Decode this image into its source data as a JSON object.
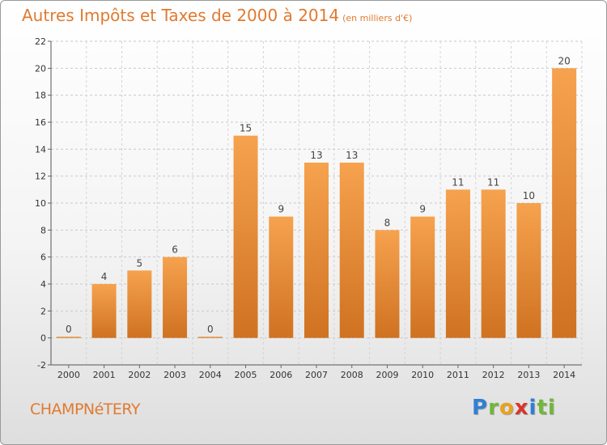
{
  "header": {
    "title": "Autres Impôts et Taxes de 2000 à 2014",
    "subtitle": "(en milliers d'€)"
  },
  "footer": {
    "town": "CHAMPNéTERY",
    "logo_letters": [
      "P",
      "r",
      "o",
      "x",
      "i",
      "ti"
    ]
  },
  "colors": {
    "bar_light": "#f6a24e",
    "bar_dark": "#cf7221",
    "text_accent": "#e07a30"
  },
  "chart_data": {
    "type": "bar",
    "title": "Autres Impôts et Taxes de 2000 à 2014",
    "subtitle": "(en milliers d'€)",
    "categories": [
      "2000",
      "2001",
      "2002",
      "2003",
      "2004",
      "2005",
      "2006",
      "2007",
      "2008",
      "2009",
      "2010",
      "2011",
      "2012",
      "2013",
      "2014"
    ],
    "values": [
      0,
      4,
      5,
      6,
      0,
      15,
      9,
      13,
      13,
      8,
      9,
      11,
      11,
      10,
      20
    ],
    "ylim": [
      -2,
      22
    ],
    "yticks": [
      -2,
      0,
      2,
      4,
      6,
      8,
      10,
      12,
      14,
      16,
      18,
      20,
      22
    ],
    "grid": true,
    "xlabel": "",
    "ylabel": ""
  }
}
